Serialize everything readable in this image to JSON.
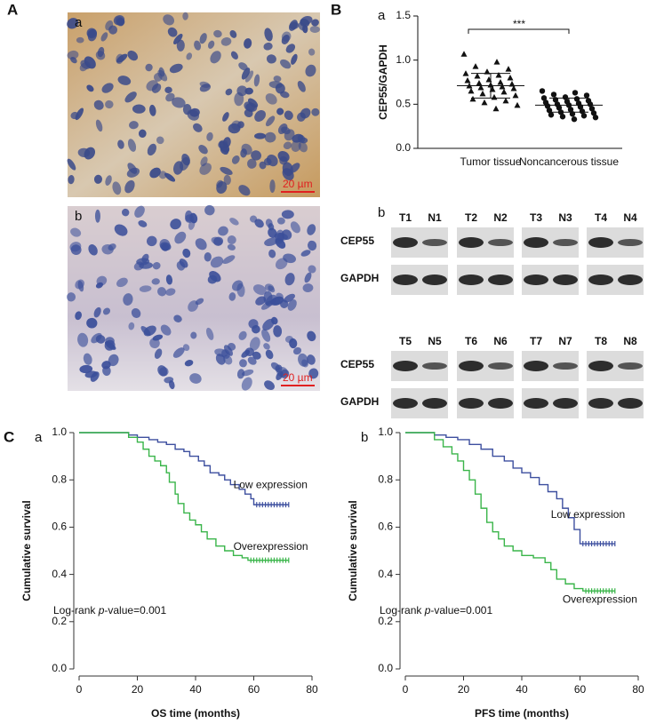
{
  "panels": {
    "A": "A",
    "B": "B",
    "C": "C"
  },
  "histology": [
    {
      "label": "a",
      "scale_bar": "20 µm"
    },
    {
      "label": "b",
      "scale_bar": "20 µm"
    }
  ],
  "blot": {
    "label": "b",
    "rows": [
      "CEP55",
      "GAPDH"
    ],
    "sets": [
      [
        [
          "T1",
          "N1"
        ],
        [
          "T2",
          "N2"
        ],
        [
          "T3",
          "N3"
        ],
        [
          "T4",
          "N4"
        ]
      ],
      [
        [
          "T5",
          "N5"
        ],
        [
          "T6",
          "N6"
        ],
        [
          "T7",
          "N7"
        ],
        [
          "T8",
          "N8"
        ]
      ]
    ]
  },
  "chart_data": [
    {
      "type": "dot",
      "label": "a",
      "ylabel": "CEP55/GAPDH",
      "categories": [
        "Tumor tissue",
        "Noncancerous tissue"
      ],
      "groups": [
        {
          "marker": "triangle",
          "values": [
            1.07,
            0.98,
            0.93,
            0.9,
            0.87,
            0.85,
            0.83,
            0.82,
            0.8,
            0.78,
            0.77,
            0.75,
            0.74,
            0.73,
            0.72,
            0.71,
            0.7,
            0.69,
            0.68,
            0.67,
            0.65,
            0.64,
            0.62,
            0.6,
            0.58,
            0.56,
            0.54,
            0.52,
            0.49,
            0.45
          ],
          "mean": 0.71,
          "sd": 0.14
        },
        {
          "marker": "circle",
          "values": [
            0.65,
            0.63,
            0.61,
            0.6,
            0.58,
            0.57,
            0.56,
            0.55,
            0.54,
            0.53,
            0.52,
            0.51,
            0.5,
            0.5,
            0.49,
            0.48,
            0.47,
            0.46,
            0.45,
            0.44,
            0.43,
            0.42,
            0.41,
            0.4,
            0.39,
            0.38,
            0.37,
            0.36,
            0.35,
            0.33
          ],
          "mean": 0.49,
          "sd": 0.08
        }
      ],
      "color": "#111111",
      "annotation": "***",
      "ylim": [
        0,
        1.5
      ],
      "yticks": [
        {
          "value": 0,
          "label": "0.0"
        },
        {
          "value": 0.5,
          "label": "0.5"
        },
        {
          "value": 1,
          "label": "1.0"
        },
        {
          "value": 1.5,
          "label": "1.5"
        }
      ]
    },
    {
      "type": "km",
      "label": "a",
      "xlabel": "OS time (months)",
      "ylabel": "Cumulative survival",
      "annotation": [
        "Log-rank ",
        "p",
        "-value=0.001"
      ],
      "xlim": [
        0,
        80
      ],
      "xticks": [
        0,
        20,
        40,
        60,
        80
      ],
      "ylim": [
        0,
        1
      ],
      "yticks": [
        {
          "value": 0,
          "label": "0.0"
        },
        {
          "value": 0.2,
          "label": "0.2"
        },
        {
          "value": 0.4,
          "label": "0.4"
        },
        {
          "value": 0.6,
          "label": "0.6"
        },
        {
          "value": 0.8,
          "label": "0.8"
        },
        {
          "value": 1,
          "label": "1.0"
        }
      ],
      "series": [
        {
          "name": "Low expression",
          "color": "#3d4f9f",
          "x": [
            0,
            17,
            20,
            24,
            27,
            30,
            33,
            36,
            38,
            41,
            43,
            45,
            48,
            50,
            52,
            55,
            57,
            59,
            60,
            72
          ],
          "values": [
            1,
            0.99,
            0.98,
            0.97,
            0.96,
            0.95,
            0.93,
            0.92,
            0.9,
            0.88,
            0.86,
            0.83,
            0.82,
            0.8,
            0.78,
            0.76,
            0.74,
            0.72,
            0.695,
            0.695
          ],
          "censor_x": [
            61,
            62,
            63,
            64,
            65,
            66,
            67,
            68,
            69,
            70,
            71,
            72
          ],
          "censor_values": [
            0.695,
            0.695,
            0.695,
            0.695,
            0.695,
            0.695,
            0.695,
            0.695,
            0.695,
            0.695,
            0.695,
            0.695
          ]
        },
        {
          "name": "Overexpression",
          "color": "#3ab54a",
          "x": [
            0,
            17,
            20,
            22,
            24,
            26,
            28,
            30,
            31,
            33,
            34,
            36,
            38,
            40,
            42,
            44,
            47,
            50,
            53,
            56,
            58,
            72
          ],
          "values": [
            1,
            0.98,
            0.96,
            0.93,
            0.9,
            0.88,
            0.86,
            0.83,
            0.79,
            0.74,
            0.7,
            0.66,
            0.63,
            0.61,
            0.58,
            0.55,
            0.52,
            0.5,
            0.48,
            0.47,
            0.46,
            0.46
          ],
          "censor_x": [
            59,
            60,
            61,
            62,
            63,
            64,
            65,
            66,
            67,
            68,
            69,
            70,
            71,
            72
          ],
          "censor_values": [
            0.46,
            0.46,
            0.46,
            0.46,
            0.46,
            0.46,
            0.46,
            0.46,
            0.46,
            0.46,
            0.46,
            0.46,
            0.46,
            0.46
          ]
        }
      ]
    },
    {
      "type": "km",
      "label": "b",
      "xlabel": "PFS time (months)",
      "ylabel": "Cumulative survival",
      "annotation": [
        "Log-rank ",
        "p",
        "-value=0.001"
      ],
      "xlim": [
        0,
        80
      ],
      "xticks": [
        0,
        20,
        40,
        60,
        80
      ],
      "ylim": [
        0,
        1
      ],
      "yticks": [
        {
          "value": 0,
          "label": "0.0"
        },
        {
          "value": 0.2,
          "label": "0.2"
        },
        {
          "value": 0.4,
          "label": "0.4"
        },
        {
          "value": 0.6,
          "label": "0.6"
        },
        {
          "value": 0.8,
          "label": "0.8"
        },
        {
          "value": 1,
          "label": "1.0"
        }
      ],
      "series": [
        {
          "name": "Low expression",
          "color": "#3d4f9f",
          "x": [
            0,
            10,
            14,
            18,
            22,
            26,
            30,
            34,
            37,
            40,
            43,
            46,
            49,
            52,
            54,
            56,
            58,
            60,
            72
          ],
          "values": [
            1,
            0.99,
            0.98,
            0.97,
            0.95,
            0.93,
            0.9,
            0.88,
            0.85,
            0.83,
            0.81,
            0.78,
            0.75,
            0.72,
            0.68,
            0.64,
            0.59,
            0.53,
            0.53
          ],
          "censor_x": [
            61,
            62,
            63,
            64,
            65,
            66,
            67,
            68,
            69,
            70,
            71,
            72
          ],
          "censor_values": [
            0.53,
            0.53,
            0.53,
            0.53,
            0.53,
            0.53,
            0.53,
            0.53,
            0.53,
            0.53,
            0.53,
            0.53
          ]
        },
        {
          "name": "Overexpression",
          "color": "#3ab54a",
          "x": [
            0,
            10,
            13,
            16,
            18,
            20,
            22,
            24,
            26,
            28,
            30,
            32,
            34,
            37,
            40,
            44,
            48,
            50,
            52,
            55,
            58,
            61,
            72
          ],
          "values": [
            1,
            0.97,
            0.94,
            0.91,
            0.88,
            0.84,
            0.8,
            0.74,
            0.68,
            0.62,
            0.58,
            0.55,
            0.52,
            0.5,
            0.48,
            0.47,
            0.45,
            0.42,
            0.38,
            0.36,
            0.34,
            0.33,
            0.33
          ],
          "censor_x": [
            62,
            63,
            64,
            65,
            66,
            67,
            68,
            69,
            70,
            71,
            72
          ],
          "censor_values": [
            0.33,
            0.33,
            0.33,
            0.33,
            0.33,
            0.33,
            0.33,
            0.33,
            0.33,
            0.33,
            0.33
          ]
        }
      ]
    }
  ]
}
